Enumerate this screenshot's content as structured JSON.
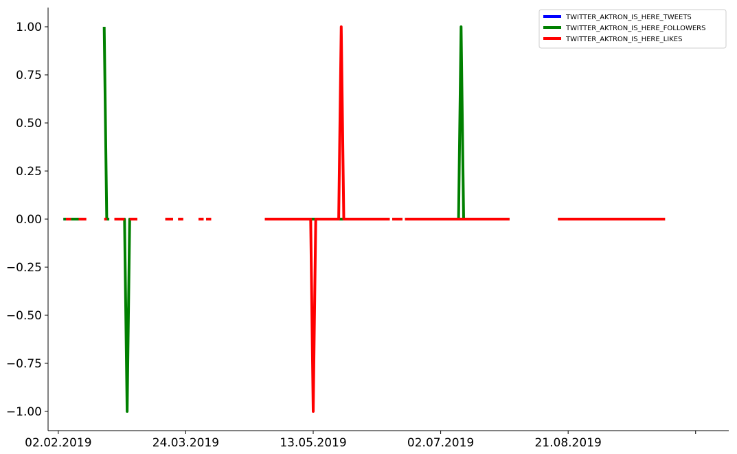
{
  "chart_data": {
    "type": "line",
    "title": "",
    "xlabel": "",
    "ylabel": "",
    "x_axis": {
      "type": "date",
      "range": [
        "2019-01-29",
        "2019-10-23"
      ],
      "ticks": [
        {
          "date": "2019-02-02",
          "label": "02.02.2019"
        },
        {
          "date": "2019-03-24",
          "label": "24.03.2019"
        },
        {
          "date": "2019-05-13",
          "label": "13.05.2019"
        },
        {
          "date": "2019-07-02",
          "label": "02.07.2019"
        },
        {
          "date": "2019-08-21",
          "label": "21.08.2019"
        },
        {
          "date": "2019-10-10",
          "label": ""
        }
      ]
    },
    "y_axis": {
      "range": [
        -1.1,
        1.1
      ],
      "ticks": [
        {
          "value": 1.0,
          "label": "1.00"
        },
        {
          "value": 0.75,
          "label": "0.75"
        },
        {
          "value": 0.5,
          "label": "0.50"
        },
        {
          "value": 0.25,
          "label": "0.25"
        },
        {
          "value": 0.0,
          "label": "0.00"
        },
        {
          "value": -0.25,
          "label": "−0.25"
        },
        {
          "value": -0.5,
          "label": "−0.50"
        },
        {
          "value": -0.75,
          "label": "−0.75"
        },
        {
          "value": -1.0,
          "label": "−1.00"
        }
      ]
    },
    "grid": false,
    "legend_position": "top-right",
    "series": [
      {
        "name": "TWITTER_AKTRON_IS_HERE_TWEETS",
        "color": "#0000ff",
        "segments": [
          [
            [
              "2019-02-04",
              0
            ],
            [
              "2019-02-05",
              0
            ]
          ]
        ]
      },
      {
        "name": "TWITTER_AKTRON_IS_HERE_FOLLOWERS",
        "color": "#008000",
        "segments": [
          [
            [
              "2019-02-04",
              0
            ],
            [
              "2019-02-05",
              0
            ]
          ],
          [
            [
              "2019-02-07",
              0
            ],
            [
              "2019-02-10",
              0
            ]
          ],
          [
            [
              "2019-02-20",
              1
            ],
            [
              "2019-02-21",
              0
            ],
            [
              "2019-02-22",
              0
            ]
          ],
          [
            [
              "2019-02-24",
              0
            ],
            [
              "2019-02-28",
              0
            ],
            [
              "2019-03-01",
              -1
            ],
            [
              "2019-03-02",
              0
            ],
            [
              "2019-03-05",
              0
            ]
          ],
          [
            [
              "2019-03-16",
              0
            ],
            [
              "2019-03-19",
              0
            ]
          ],
          [
            [
              "2019-03-21",
              0
            ],
            [
              "2019-03-23",
              0
            ]
          ],
          [
            [
              "2019-03-29",
              0
            ],
            [
              "2019-03-31",
              0
            ]
          ],
          [
            [
              "2019-04-01",
              0
            ],
            [
              "2019-04-03",
              0
            ]
          ],
          [
            [
              "2019-04-24",
              0
            ],
            [
              "2019-05-12",
              0
            ],
            [
              "2019-05-13",
              0
            ],
            [
              "2019-05-14",
              0
            ],
            [
              "2019-05-23",
              0
            ],
            [
              "2019-05-24",
              0
            ],
            [
              "2019-05-25",
              0
            ],
            [
              "2019-06-12",
              0
            ]
          ],
          [
            [
              "2019-06-13",
              0
            ],
            [
              "2019-06-17",
              0
            ]
          ],
          [
            [
              "2019-06-18",
              0
            ],
            [
              "2019-07-09",
              0
            ],
            [
              "2019-07-10",
              1
            ],
            [
              "2019-07-11",
              0
            ],
            [
              "2019-07-29",
              0
            ]
          ],
          [
            [
              "2019-08-17",
              0
            ],
            [
              "2019-09-28",
              0
            ]
          ]
        ]
      },
      {
        "name": "TWITTER_AKTRON_IS_HERE_LIKES",
        "color": "#ff0000",
        "segments": [
          [
            [
              "2019-02-05",
              0
            ],
            [
              "2019-02-07",
              0
            ]
          ],
          [
            [
              "2019-02-10",
              0
            ],
            [
              "2019-02-13",
              0
            ]
          ],
          [
            [
              "2019-02-20",
              0
            ],
            [
              "2019-02-21",
              0
            ]
          ],
          [
            [
              "2019-02-24",
              0
            ],
            [
              "2019-02-28",
              0
            ]
          ],
          [
            [
              "2019-03-02",
              0
            ],
            [
              "2019-03-05",
              0
            ]
          ],
          [
            [
              "2019-03-16",
              0
            ],
            [
              "2019-03-19",
              0
            ]
          ],
          [
            [
              "2019-03-21",
              0
            ],
            [
              "2019-03-23",
              0
            ]
          ],
          [
            [
              "2019-03-29",
              0
            ],
            [
              "2019-03-31",
              0
            ]
          ],
          [
            [
              "2019-04-01",
              0
            ],
            [
              "2019-04-03",
              0
            ]
          ],
          [
            [
              "2019-04-24",
              0
            ],
            [
              "2019-05-12",
              0
            ],
            [
              "2019-05-13",
              -1
            ],
            [
              "2019-05-14",
              0
            ],
            [
              "2019-05-23",
              0
            ],
            [
              "2019-05-24",
              1
            ],
            [
              "2019-05-25",
              0
            ],
            [
              "2019-06-12",
              0
            ]
          ],
          [
            [
              "2019-06-13",
              0
            ],
            [
              "2019-06-17",
              0
            ]
          ],
          [
            [
              "2019-06-18",
              0
            ],
            [
              "2019-07-29",
              0
            ]
          ],
          [
            [
              "2019-08-17",
              0
            ],
            [
              "2019-09-28",
              0
            ]
          ]
        ]
      }
    ]
  }
}
